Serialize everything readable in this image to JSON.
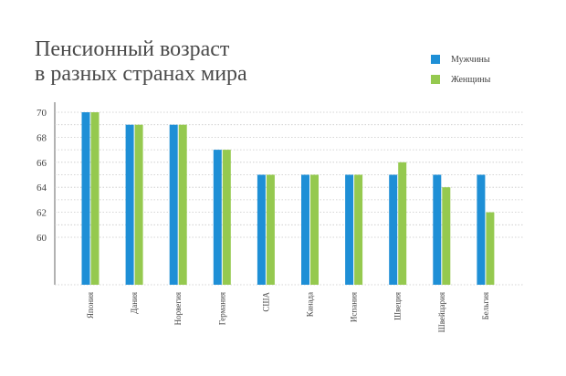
{
  "chart_data": {
    "type": "bar",
    "title_lines": [
      "Пенсионный возраст",
      "в разных странах мира"
    ],
    "categories": [
      "Япония",
      "Дания",
      "Норвегия",
      "Германия",
      "США",
      "Канада",
      "Испания",
      "Швеция",
      "Швейцария",
      "Бельгия"
    ],
    "series": [
      {
        "name": "Мужчины",
        "color": "#1e8fd6",
        "values": [
          70,
          69,
          69,
          67,
          65,
          65,
          65,
          65,
          65,
          65
        ]
      },
      {
        "name": "Женщины",
        "color": "#95c94f",
        "values": [
          70,
          69,
          69,
          67,
          65,
          65,
          65,
          66,
          64,
          62
        ]
      }
    ],
    "yticks": [
      60,
      62,
      64,
      66,
      68,
      70
    ],
    "legend_position": "top-right",
    "grid": true,
    "xlabel": "",
    "ylabel": ""
  }
}
